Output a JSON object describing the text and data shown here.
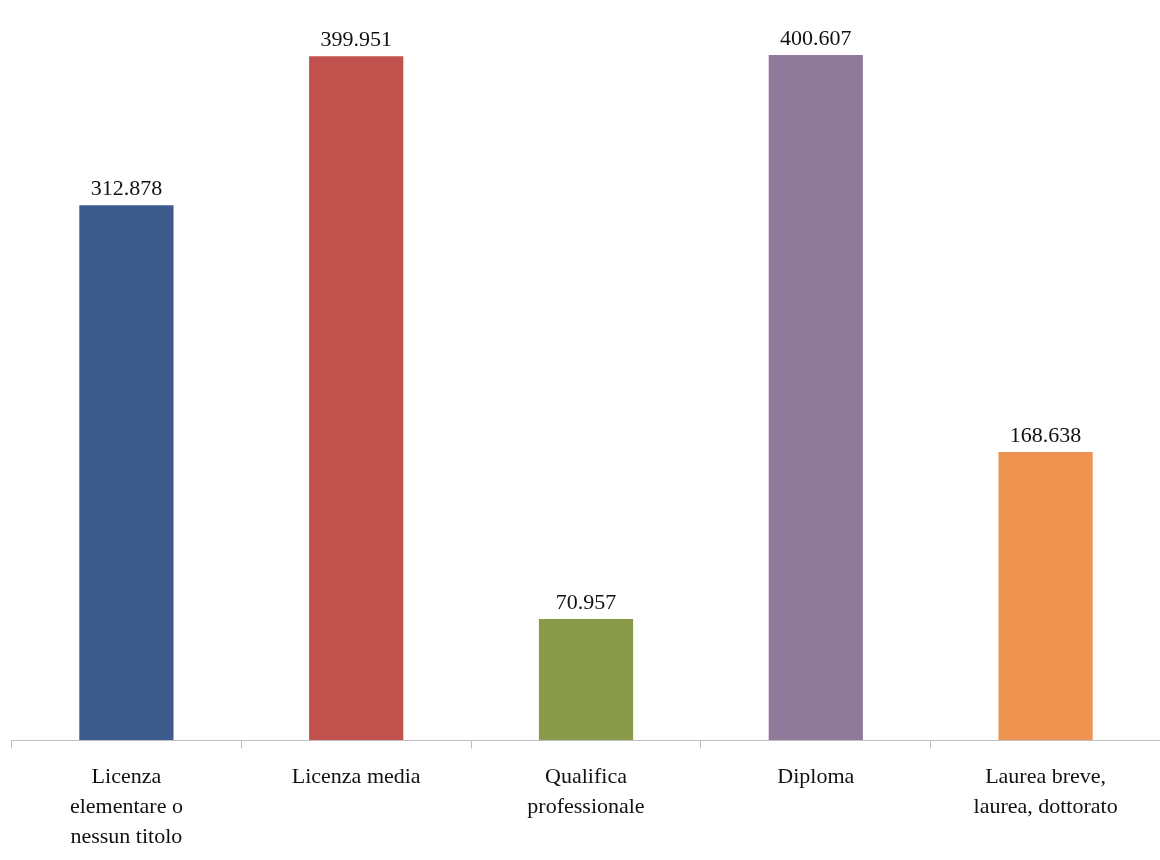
{
  "chart_data": {
    "type": "bar",
    "categories": [
      "Licenza elementare o nessun titolo",
      "Licenza media",
      "Qualifica professionale",
      "Diploma",
      "Laurea breve, laurea, dottorato"
    ],
    "values": [
      312878,
      399951,
      70957,
      400607,
      168638
    ],
    "colors": [
      "#3c5a8c",
      "#c0514c",
      "#8a9a4b",
      "#8f7b99",
      "#ef9351"
    ],
    "value_labels": [
      "312.878",
      "399.951",
      "70.957",
      "400.607",
      "168.638"
    ]
  }
}
